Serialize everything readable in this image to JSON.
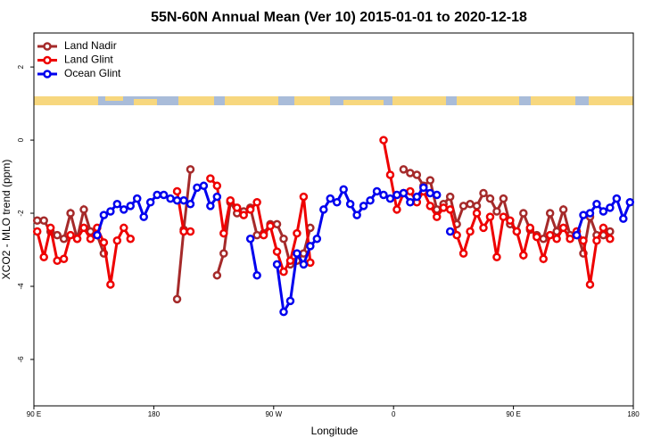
{
  "chart_data": {
    "type": "line",
    "title": "55N-60N Annual Mean (Ver 10)   2015-01-01 to 2020-12-18",
    "x_label": "Longitude",
    "y_label": "XCO2 - MLO trend (ppm)",
    "xlim": [
      90,
      540
    ],
    "xticks": [
      {
        "value": 90,
        "label": "90 E"
      },
      180,
      {
        "value": 270,
        "label": "90 W"
      },
      {
        "value": 360,
        "label": "0"
      },
      {
        "value": 450,
        "label": "90 E"
      },
      {
        "value": 540,
        "label": "180"
      }
    ],
    "ylim": [
      -7.27,
      2.93
    ],
    "yticks": [
      -6,
      -4,
      -2,
      0,
      2
    ],
    "legend": "top-left",
    "x": [
      92.5,
      97.5,
      102.5,
      107.5,
      112.5,
      117.5,
      122.5,
      127.5,
      132.5,
      137.5,
      142.5,
      147.5,
      152.5,
      157.5,
      162.5,
      167.5,
      172.5,
      177.5,
      182.5,
      187.5,
      192.5,
      197.5,
      202.5,
      207.5,
      212.5,
      217.5,
      222.5,
      227.5,
      232.5,
      237.5,
      242.5,
      247.5,
      252.5,
      257.5,
      262.5,
      267.5,
      272.5,
      277.5,
      282.5,
      287.5,
      292.5,
      297.5,
      302.5,
      307.5,
      312.5,
      317.5,
      322.5,
      327.5,
      332.5,
      337.5,
      342.5,
      347.5,
      352.5,
      357.5,
      362.5,
      367.5,
      372.5,
      377.5,
      382.5,
      387.5,
      392.5,
      397.5,
      402.5,
      407.5,
      412.5,
      417.5,
      422.5,
      427.5,
      432.5,
      437.5,
      442.5,
      447.5,
      452.5,
      457.5,
      462.5,
      467.5,
      472.5,
      477.5,
      482.5,
      487.5,
      492.5,
      497.5,
      502.5,
      507.5,
      512.5,
      517.5,
      522.5,
      527.5,
      532.5,
      537.5
    ],
    "series": [
      {
        "name": "Land Nadir",
        "color": "#a52a2a",
        "values": [
          -2.2,
          -2.2,
          -2.5,
          -2.6,
          -2.7,
          -2.0,
          -2.7,
          -1.9,
          -2.5,
          -2.6,
          -3.1,
          null,
          null,
          null,
          null,
          null,
          null,
          null,
          null,
          null,
          null,
          -4.35,
          -2.45,
          -0.8,
          null,
          null,
          null,
          -3.7,
          -3.1,
          -1.7,
          -2.0,
          -1.95,
          -1.85,
          -2.6,
          -2.55,
          -2.3,
          -2.3,
          -2.7,
          -3.4,
          -3.3,
          -3.1,
          -2.4,
          null,
          null,
          null,
          null,
          null,
          null,
          null,
          null,
          null,
          null,
          null,
          null,
          null,
          -0.8,
          -0.9,
          -0.95,
          -1.25,
          -1.1,
          -1.9,
          -1.75,
          -1.55,
          -2.3,
          -1.8,
          -1.75,
          -1.8,
          -1.45,
          -1.6,
          -1.95,
          -1.6,
          -2.3,
          -2.5,
          -2.0,
          -2.45,
          -2.6,
          -2.7,
          -2.0,
          -2.5,
          -1.9,
          -2.6,
          -2.5,
          -3.1,
          -2.1,
          -2.6,
          -2.6,
          -2.5,
          null,
          null,
          null
        ]
      },
      {
        "name": "Land Glint",
        "color": "#ee0000",
        "values": [
          -2.5,
          -3.2,
          -2.4,
          -3.3,
          -3.25,
          -2.6,
          -2.7,
          -2.4,
          -2.7,
          -2.4,
          -2.8,
          -3.95,
          -2.75,
          -2.4,
          -2.7,
          null,
          null,
          null,
          null,
          null,
          null,
          -1.4,
          -2.5,
          -2.5,
          null,
          null,
          -1.05,
          -1.25,
          -2.55,
          -1.65,
          -1.85,
          -2.05,
          -1.9,
          -1.7,
          -2.6,
          -2.35,
          -3.05,
          -3.6,
          -3.3,
          -2.55,
          -1.55,
          -3.35,
          null,
          null,
          null,
          null,
          null,
          null,
          null,
          null,
          null,
          null,
          0.0,
          -0.95,
          -1.9,
          -1.45,
          -1.4,
          -1.7,
          -1.4,
          -1.8,
          -2.1,
          -1.85,
          -1.9,
          -2.6,
          -3.1,
          -2.5,
          -2.0,
          -2.4,
          -2.1,
          -3.2,
          -2.1,
          -2.2,
          -2.5,
          -3.15,
          -2.4,
          -2.65,
          -3.25,
          -2.6,
          -2.7,
          -2.4,
          -2.7,
          -2.5,
          -2.75,
          -3.95,
          -2.75,
          -2.4,
          -2.7,
          null,
          null,
          null
        ]
      },
      {
        "name": "Ocean Glint",
        "color": "#0000ee",
        "values": [
          null,
          null,
          null,
          null,
          null,
          null,
          null,
          null,
          null,
          -2.6,
          -2.05,
          -1.95,
          -1.75,
          -1.9,
          -1.8,
          -1.6,
          -2.1,
          -1.7,
          -1.5,
          -1.5,
          -1.6,
          -1.65,
          -1.65,
          -1.75,
          -1.3,
          -1.25,
          -1.8,
          -1.55,
          null,
          null,
          null,
          null,
          -2.7,
          -3.7,
          null,
          null,
          -3.4,
          -4.7,
          -4.4,
          -3.1,
          -3.4,
          -2.9,
          -2.7,
          -1.9,
          -1.6,
          -1.7,
          -1.35,
          -1.75,
          -2.05,
          -1.8,
          -1.65,
          -1.4,
          -1.5,
          -1.6,
          -1.5,
          -1.45,
          -1.7,
          -1.55,
          -1.3,
          -1.45,
          -1.5,
          null,
          -2.5,
          null,
          null,
          null,
          null,
          null,
          null,
          null,
          null,
          null,
          null,
          null,
          null,
          null,
          null,
          null,
          null,
          null,
          null,
          -2.6,
          -2.05,
          -2.0,
          -1.75,
          -1.95,
          -1.85,
          -1.6,
          -2.15,
          -1.7
        ]
      }
    ]
  }
}
